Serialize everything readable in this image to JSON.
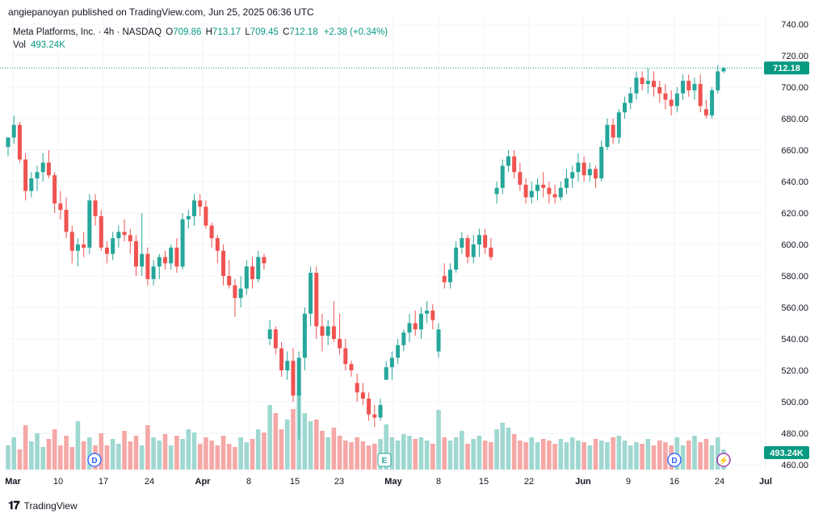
{
  "header": {
    "published_line": "angiepanoyan published on TradingView.com, Jun 25, 2025 06:36 UTC"
  },
  "legend": {
    "symbol_line": "Meta Platforms, Inc. · 4h · NASDAQ",
    "open_label": "O",
    "open": "709.86",
    "high_label": "H",
    "high": "713.17",
    "low_label": "L",
    "low": "709.45",
    "close_label": "C",
    "close": "712.18",
    "change": "+2.38 (+0.34%)",
    "vol_label": "Vol",
    "vol_value": "493.24K"
  },
  "price_tag": "712.18",
  "vol_tag": "493.24K",
  "events": [
    {
      "label": "D",
      "type": "dividend",
      "date": "Mar 14"
    },
    {
      "label": "E",
      "type": "earnings",
      "date": "Apr 30"
    },
    {
      "label": "D",
      "type": "dividend",
      "date": "Jun 16"
    },
    {
      "label": "⚡",
      "type": "split",
      "date": "Jun 24"
    }
  ],
  "footer": {
    "brand": "TradingView"
  },
  "colors": {
    "up": "#26a69a",
    "down": "#ef5350",
    "vol_up": "#9fd8d1",
    "vol_down": "#f5a8a6",
    "price_tag_bg": "#089981",
    "grid": "#f0f3fa"
  },
  "chart_data": {
    "type": "candlestick",
    "title": "Meta Platforms, Inc. · 4h · NASDAQ",
    "xlabel": "",
    "ylabel": "",
    "ylim": [
      455,
      745
    ],
    "y_ticks": [
      "740.00",
      "720.00",
      "700.00",
      "680.00",
      "660.00",
      "640.00",
      "620.00",
      "600.00",
      "580.00",
      "560.00",
      "540.00",
      "520.00",
      "500.00",
      "480.00",
      "460.00"
    ],
    "x_ticks": [
      "Mar",
      "10",
      "17",
      "24",
      "Apr",
      "8",
      "15",
      "23",
      "May",
      "8",
      "15",
      "22",
      "Jun",
      "9",
      "16",
      "24",
      "Jul"
    ],
    "grid": true,
    "candles_ohlc": [
      [
        662,
        668,
        656,
        668
      ],
      [
        668,
        682,
        664,
        676
      ],
      [
        676,
        678,
        652,
        654
      ],
      [
        654,
        658,
        628,
        634
      ],
      [
        634,
        646,
        630,
        642
      ],
      [
        642,
        650,
        634,
        646
      ],
      [
        646,
        658,
        640,
        652
      ],
      [
        652,
        660,
        642,
        644
      ],
      [
        644,
        646,
        620,
        626
      ],
      [
        626,
        634,
        616,
        622
      ],
      [
        622,
        630,
        604,
        608
      ],
      [
        608,
        612,
        588,
        596
      ],
      [
        596,
        604,
        586,
        600
      ],
      [
        600,
        608,
        592,
        598
      ],
      [
        598,
        632,
        594,
        628
      ],
      [
        628,
        632,
        612,
        618
      ],
      [
        618,
        622,
        596,
        598
      ],
      [
        598,
        602,
        588,
        594
      ],
      [
        594,
        608,
        590,
        604
      ],
      [
        604,
        612,
        598,
        608
      ],
      [
        608,
        616,
        602,
        606
      ],
      [
        606,
        610,
        594,
        602
      ],
      [
        602,
        606,
        580,
        586
      ],
      [
        586,
        620,
        580,
        594
      ],
      [
        594,
        598,
        574,
        578
      ],
      [
        578,
        590,
        574,
        586
      ],
      [
        586,
        594,
        578,
        592
      ],
      [
        592,
        596,
        584,
        588
      ],
      [
        588,
        600,
        584,
        598
      ],
      [
        598,
        604,
        582,
        586
      ],
      [
        586,
        620,
        584,
        616
      ],
      [
        616,
        622,
        610,
        618
      ],
      [
        618,
        632,
        612,
        628
      ],
      [
        628,
        632,
        618,
        624
      ],
      [
        624,
        628,
        610,
        612
      ],
      [
        612,
        614,
        598,
        604
      ],
      [
        604,
        606,
        588,
        596
      ],
      [
        596,
        600,
        574,
        580
      ],
      [
        580,
        590,
        572,
        574
      ],
      [
        574,
        578,
        554,
        566
      ],
      [
        566,
        580,
        560,
        572
      ],
      [
        572,
        590,
        568,
        586
      ],
      [
        586,
        592,
        572,
        578
      ],
      [
        578,
        596,
        576,
        592
      ],
      [
        592,
        594,
        584,
        588
      ],
      [
        540,
        552,
        536,
        546
      ],
      [
        546,
        548,
        530,
        534
      ],
      [
        534,
        538,
        516,
        520
      ],
      [
        520,
        532,
        514,
        526
      ],
      [
        526,
        534,
        500,
        504
      ],
      [
        504,
        532,
        476,
        528
      ],
      [
        528,
        560,
        520,
        556
      ],
      [
        556,
        586,
        548,
        582
      ],
      [
        582,
        586,
        540,
        548
      ],
      [
        548,
        556,
        532,
        542
      ],
      [
        542,
        552,
        536,
        548
      ],
      [
        548,
        564,
        538,
        540
      ],
      [
        540,
        556,
        530,
        534
      ],
      [
        534,
        540,
        520,
        524
      ],
      [
        524,
        526,
        516,
        520
      ],
      [
        512,
        518,
        500,
        506
      ],
      [
        506,
        512,
        498,
        502
      ],
      [
        502,
        506,
        488,
        492
      ],
      [
        492,
        498,
        484,
        490
      ],
      [
        490,
        502,
        488,
        498
      ],
      [
        514,
        526,
        514,
        522
      ],
      [
        522,
        532,
        514,
        528
      ],
      [
        528,
        540,
        524,
        536
      ],
      [
        536,
        546,
        532,
        544
      ],
      [
        544,
        556,
        538,
        550
      ],
      [
        550,
        558,
        542,
        546
      ],
      [
        546,
        560,
        540,
        556
      ],
      [
        556,
        564,
        550,
        558
      ],
      [
        558,
        562,
        546,
        552
      ],
      [
        532,
        550,
        528,
        546
      ],
      [
        580,
        588,
        572,
        576
      ],
      [
        576,
        588,
        572,
        584
      ],
      [
        584,
        602,
        582,
        598
      ],
      [
        598,
        608,
        594,
        604
      ],
      [
        604,
        606,
        588,
        592
      ],
      [
        592,
        606,
        588,
        600
      ],
      [
        600,
        610,
        592,
        606
      ],
      [
        606,
        610,
        594,
        598
      ],
      [
        598,
        604,
        590,
        592
      ],
      [
        632,
        640,
        626,
        636
      ],
      [
        636,
        654,
        632,
        650
      ],
      [
        650,
        660,
        646,
        656
      ],
      [
        656,
        660,
        642,
        646
      ],
      [
        646,
        652,
        634,
        638
      ],
      [
        638,
        642,
        626,
        630
      ],
      [
        630,
        640,
        626,
        634
      ],
      [
        634,
        642,
        628,
        638
      ],
      [
        638,
        646,
        630,
        636
      ],
      [
        636,
        640,
        626,
        632
      ],
      [
        632,
        638,
        626,
        630
      ],
      [
        630,
        640,
        628,
        636
      ],
      [
        636,
        648,
        632,
        642
      ],
      [
        642,
        650,
        636,
        646
      ],
      [
        646,
        658,
        640,
        652
      ],
      [
        652,
        656,
        640,
        644
      ],
      [
        644,
        652,
        640,
        648
      ],
      [
        648,
        650,
        636,
        642
      ],
      [
        642,
        666,
        640,
        662
      ],
      [
        662,
        680,
        660,
        676
      ],
      [
        676,
        680,
        664,
        668
      ],
      [
        668,
        686,
        664,
        684
      ],
      [
        684,
        694,
        680,
        690
      ],
      [
        690,
        700,
        686,
        696
      ],
      [
        696,
        710,
        692,
        706
      ],
      [
        706,
        710,
        698,
        702
      ],
      [
        702,
        712,
        696,
        704
      ],
      [
        704,
        710,
        694,
        700
      ],
      [
        700,
        704,
        690,
        696
      ],
      [
        696,
        702,
        686,
        692
      ],
      [
        692,
        698,
        682,
        688
      ],
      [
        688,
        700,
        684,
        696
      ],
      [
        696,
        708,
        692,
        704
      ],
      [
        704,
        708,
        694,
        698
      ],
      [
        698,
        706,
        692,
        702
      ],
      [
        702,
        708,
        684,
        688
      ],
      [
        686,
        692,
        680,
        682
      ],
      [
        682,
        700,
        680,
        698
      ],
      [
        698,
        714,
        696,
        710
      ],
      [
        710,
        713,
        709,
        712
      ]
    ],
    "volume_k": [
      "volumes are drawn as relative bar heights; last bar value 493.24K"
    ]
  }
}
